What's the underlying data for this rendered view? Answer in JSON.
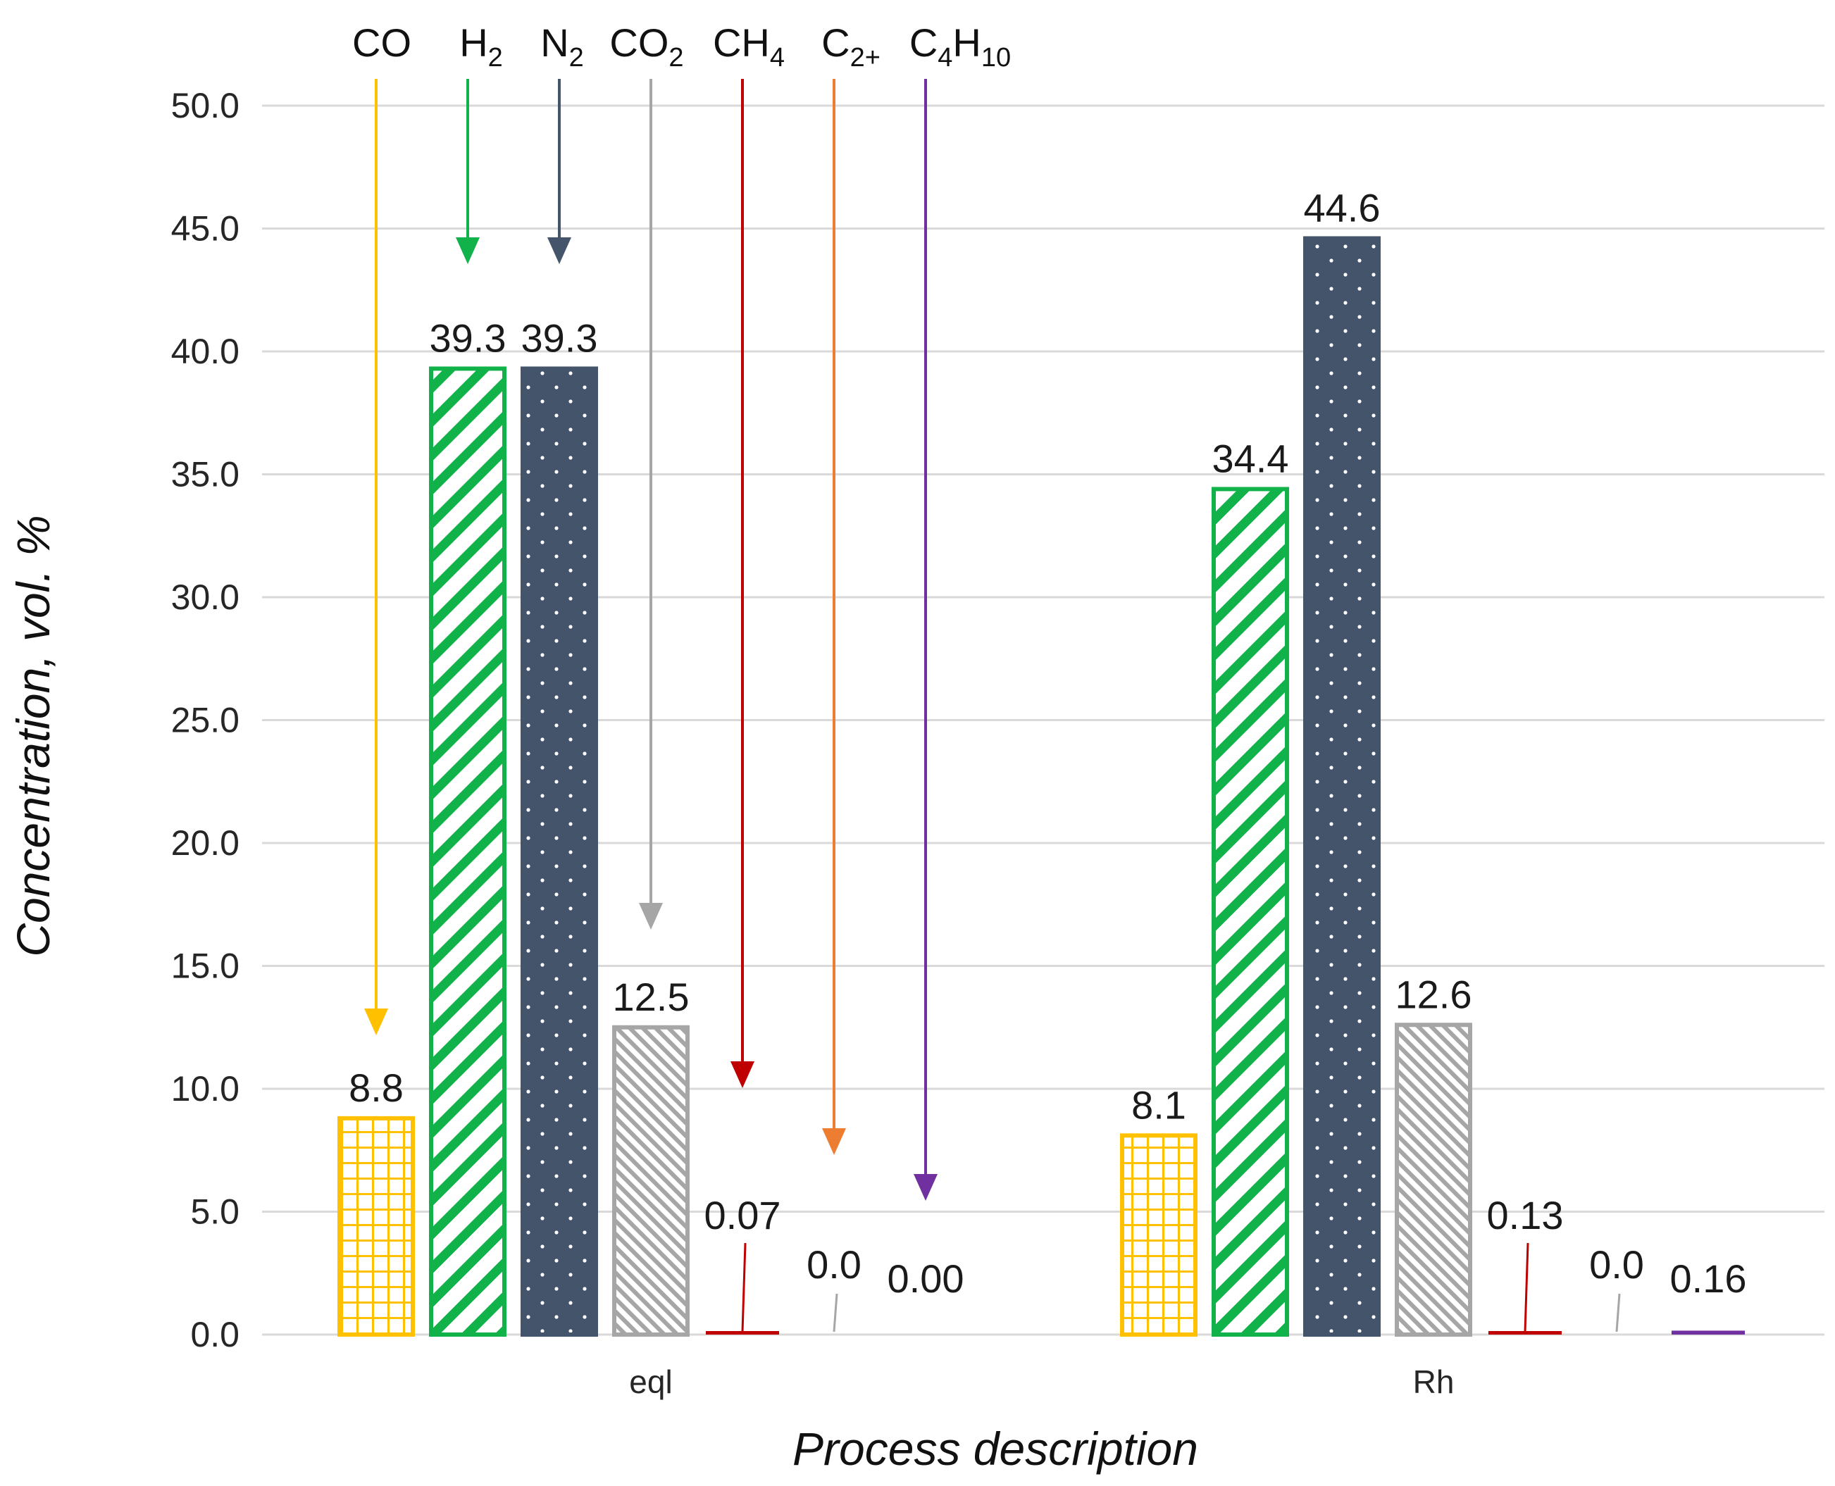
{
  "chart_data": {
    "type": "bar",
    "title": "",
    "xlabel": "Process description",
    "ylabel": "Concentration, vol. %",
    "ylim": [
      0,
      50
    ],
    "yticks": [
      "0.0",
      "5.0",
      "10.0",
      "15.0",
      "20.0",
      "25.0",
      "30.0",
      "35.0",
      "40.0",
      "45.0",
      "50.0"
    ],
    "grid": true,
    "categories": [
      "eql",
      "Rh"
    ],
    "series": [
      {
        "name": "CO",
        "name_base": "CO",
        "name_sub": "",
        "color": "#FFC000",
        "pattern": "grid",
        "values": [
          8.8,
          8.1
        ],
        "labels": [
          "8.8",
          "8.1"
        ]
      },
      {
        "name": "H2",
        "name_base": "H",
        "name_sub": "2",
        "color": "#12B24B",
        "pattern": "diagonal-wide",
        "values": [
          39.3,
          34.4
        ],
        "labels": [
          "39.3",
          "34.4"
        ]
      },
      {
        "name": "N2",
        "name_base": "N",
        "name_sub": "2",
        "color": "#44546A",
        "pattern": "dots",
        "values": [
          39.3,
          44.6
        ],
        "labels": [
          "39.3",
          "44.6"
        ]
      },
      {
        "name": "CO2",
        "name_base": "CO",
        "name_sub": "2",
        "color": "#A6A6A6",
        "pattern": "diagonal-fine",
        "values": [
          12.5,
          12.6
        ],
        "labels": [
          "12.5",
          "12.6"
        ]
      },
      {
        "name": "CH4",
        "name_base": "CH",
        "name_sub": "4",
        "color": "#C00000",
        "pattern": "solid",
        "values": [
          0.07,
          0.13
        ],
        "labels": [
          "0.07",
          "0.13"
        ]
      },
      {
        "name": "C2+",
        "name_base": "C",
        "name_sub": "2+",
        "color": "#ED7D31",
        "pattern": "solid",
        "values": [
          0.0,
          0.0
        ],
        "labels": [
          "0.0",
          "0.0"
        ]
      },
      {
        "name": "C4H10",
        "name_base": "C",
        "name_sub": "4",
        "name_mid": "H",
        "name_sub2": "10",
        "color": "#7030A0",
        "pattern": "solid",
        "values": [
          0.0,
          0.16
        ],
        "labels": [
          "0.00",
          "0.16"
        ]
      }
    ],
    "annotations": "Series names at top with downward arrows pointing to the eql bars"
  }
}
